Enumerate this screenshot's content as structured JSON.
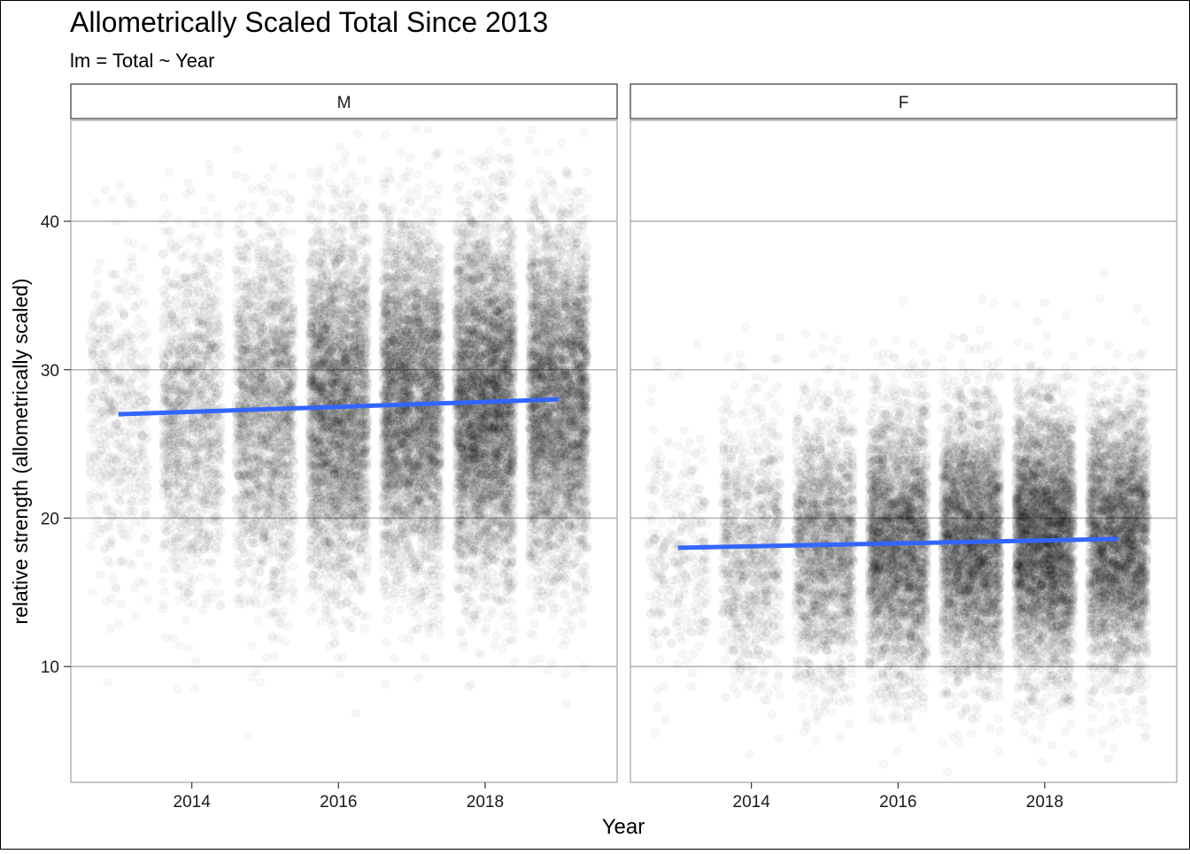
{
  "chart_data": {
    "type": "scatter",
    "title": "Allometrically Scaled Total Since 2013",
    "subtitle": "lm = Total ~ Year",
    "xlabel": "Year",
    "ylabel": "relative strength (allometrically scaled)",
    "x_ticks": [
      2014,
      2016,
      2018
    ],
    "y_ticks": [
      10,
      20,
      30,
      40
    ],
    "xlim": [
      2012.35,
      2019.8
    ],
    "ylim": [
      2.2,
      46.8
    ],
    "grid": "horizontal major lines",
    "colors": {
      "points": "#000000",
      "trend_line": "#3366ff",
      "grid": "#b3b3b3",
      "strip_border": "#333333"
    },
    "panels": [
      {
        "name": "M",
        "trend": {
          "x": [
            2013,
            2019
          ],
          "y": [
            27.0,
            28.0
          ]
        },
        "years": [
          {
            "year": 2013,
            "n": 500,
            "mean": 27.0,
            "sd": 5.6
          },
          {
            "year": 2014,
            "n": 1300,
            "mean": 27.2,
            "sd": 5.7
          },
          {
            "year": 2015,
            "n": 2000,
            "mean": 27.4,
            "sd": 5.7
          },
          {
            "year": 2016,
            "n": 3300,
            "mean": 27.6,
            "sd": 5.8
          },
          {
            "year": 2017,
            "n": 3600,
            "mean": 27.7,
            "sd": 5.8
          },
          {
            "year": 2018,
            "n": 4200,
            "mean": 27.8,
            "sd": 5.8
          },
          {
            "year": 2019,
            "n": 3600,
            "mean": 28.0,
            "sd": 5.8
          }
        ]
      },
      {
        "name": "F",
        "trend": {
          "x": [
            2013,
            2019
          ],
          "y": [
            18.0,
            18.6
          ]
        },
        "years": [
          {
            "year": 2013,
            "n": 300,
            "mean": 18.0,
            "sd": 4.3
          },
          {
            "year": 2014,
            "n": 900,
            "mean": 18.1,
            "sd": 4.4
          },
          {
            "year": 2015,
            "n": 1800,
            "mean": 18.2,
            "sd": 4.4
          },
          {
            "year": 2016,
            "n": 3000,
            "mean": 18.3,
            "sd": 4.4
          },
          {
            "year": 2017,
            "n": 3300,
            "mean": 18.4,
            "sd": 4.4
          },
          {
            "year": 2018,
            "n": 3900,
            "mean": 18.5,
            "sd": 4.4
          },
          {
            "year": 2019,
            "n": 3300,
            "mean": 18.6,
            "sd": 4.4
          }
        ]
      }
    ]
  }
}
